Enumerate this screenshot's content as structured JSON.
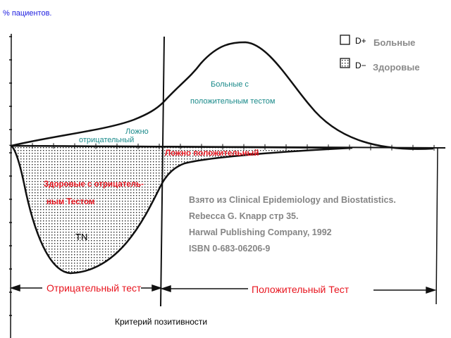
{
  "y_axis_label": "% пациентов.",
  "x_axis_label": "Критерий позитивности",
  "legend": [
    {
      "symbol": "D+",
      "label": "Больные",
      "fill": "empty"
    },
    {
      "symbol": "D−",
      "label": "Здоровые",
      "fill": "dotted"
    }
  ],
  "annotations": {
    "sick_positive_1": "Больные с",
    "sick_positive_2": "положительным тестом",
    "false_negative_1": "Ложно",
    "false_negative_2": "отрицательный",
    "false_positive": "Ложно положительный",
    "healthy_negative_1": "Здоровые с отрицатель-",
    "healthy_negative_2": "ным Тестом",
    "tn": "TN"
  },
  "ranges": {
    "negative_test": "Отрицательный тест",
    "positive_test": "Положительный Тест"
  },
  "source": [
    "Взято из Clinical Epidemiology and Biostatistics.",
    "Rebecca G. Knapp стр 35.",
    "Harwal Publishing Company, 1992",
    "ISBN 0-683-06206-9"
  ],
  "colors": {
    "teal": "#1a8a8a",
    "red": "#e8141e",
    "blue": "#2020e0",
    "gray": "#858585"
  }
}
